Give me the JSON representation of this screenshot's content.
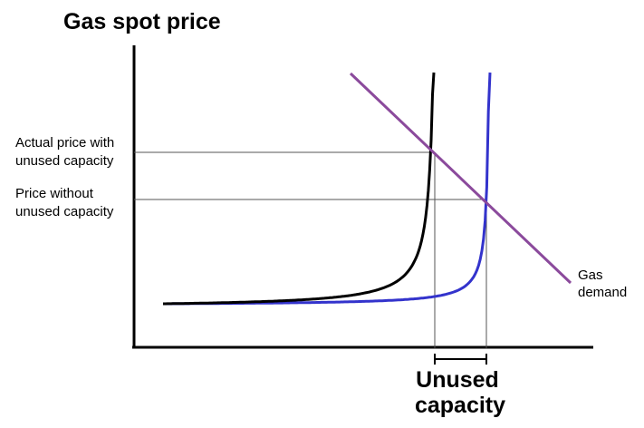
{
  "title": "Gas spot price",
  "labels": {
    "actual_price_line1": "Actual price with",
    "actual_price_line2": "unused capacity",
    "price_without_line1": "Price without",
    "price_without_line2": "unused capacity",
    "gas_demand_line1": "Gas",
    "gas_demand_line2": "demand",
    "unused_capacity_line1": "Unused",
    "unused_capacity_line2": "capacity"
  },
  "colors": {
    "axes": "#000000",
    "supply_with_unused": "#000000",
    "supply_without_unused": "#3333cc",
    "demand": "#8b4a9c",
    "guide_lines": "#555555"
  }
}
